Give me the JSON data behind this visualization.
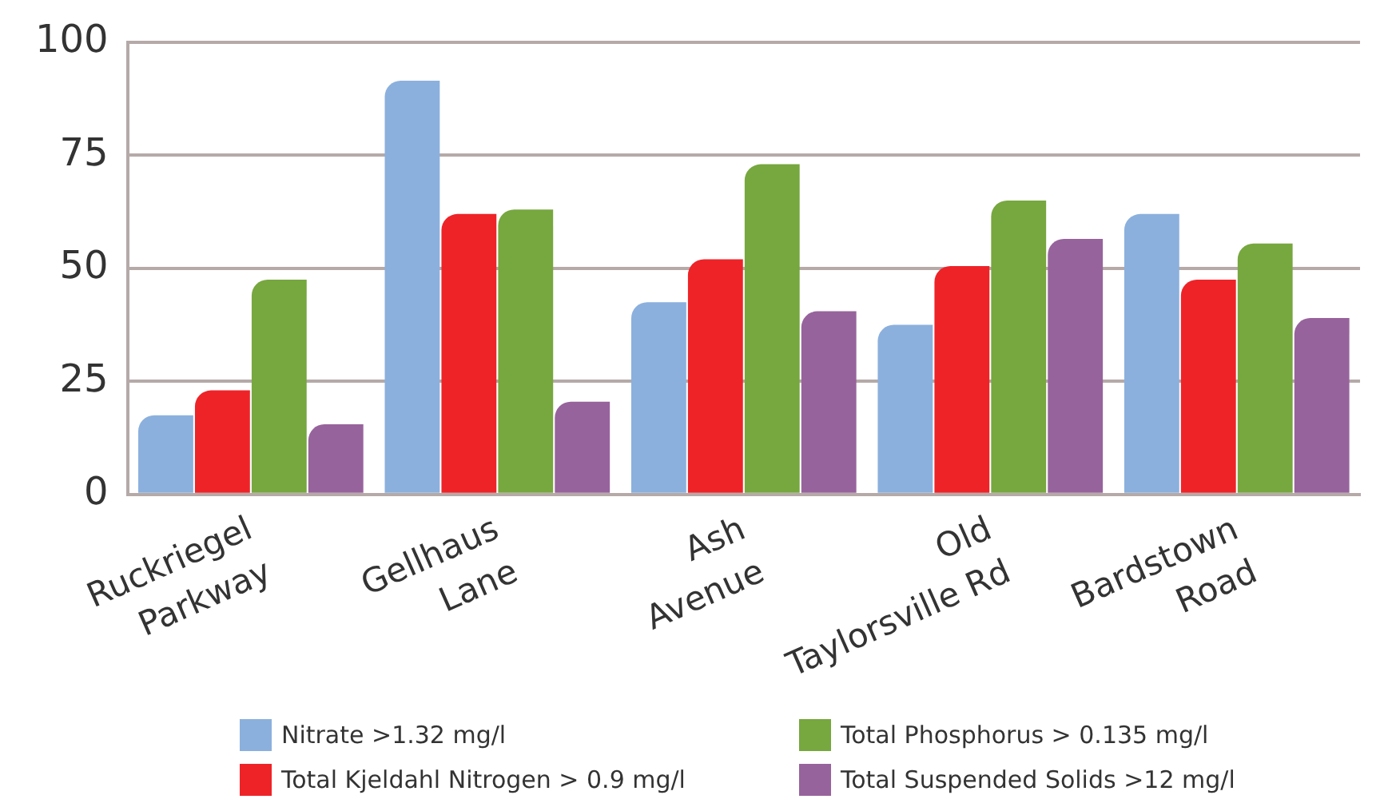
{
  "chart_data": {
    "type": "bar",
    "categories": [
      "Ruckriegel\nParkway",
      "Gellhaus\nLane",
      "Ash\nAvenue",
      "Old\nTaylorsville Rd",
      "Bardstown\nRoad"
    ],
    "series": [
      {
        "name": "Nitrate >1.32 mg/l",
        "color": "#8bb0dd",
        "values": [
          17.5,
          91.5,
          42.5,
          37.5,
          62
        ]
      },
      {
        "name": "Total Kjeldahl Nitrogen > 0.9 mg/l",
        "color": "#ee2328",
        "values": [
          23,
          62,
          52,
          50.5,
          47.5
        ]
      },
      {
        "name": "Total Phosphorus > 0.135 mg/l",
        "color": "#77a73f",
        "values": [
          47.5,
          63,
          73,
          65,
          55.5
        ]
      },
      {
        "name": "Total Suspended Solids >12 mg/l",
        "color": "#97639c",
        "values": [
          15.5,
          20.5,
          40.5,
          56.5,
          39
        ]
      }
    ],
    "ylim": [
      0,
      100
    ],
    "yticks": [
      0,
      25,
      50,
      75,
      100
    ],
    "grid": "y",
    "legend": "bottom"
  }
}
